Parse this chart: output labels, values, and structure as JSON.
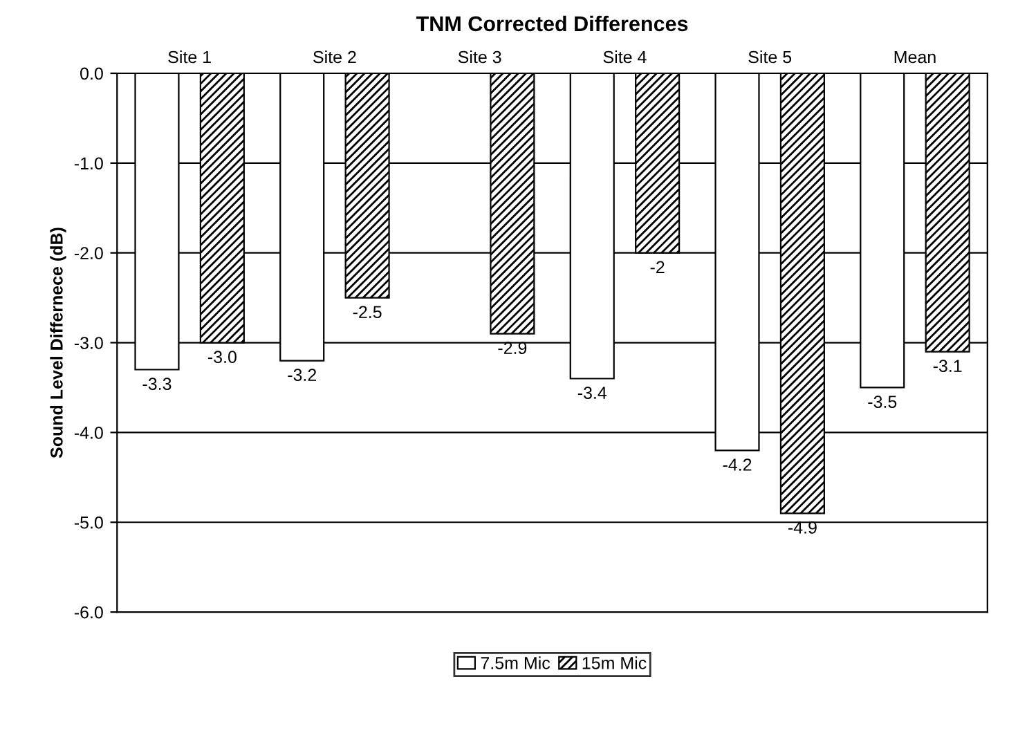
{
  "chart_data": {
    "type": "bar",
    "title": "TNM Corrected Differences",
    "ylabel": "Sound Level Differnece (dB)",
    "categories": [
      "Site 1",
      "Site 2",
      "Site 3",
      "Site 4",
      "Site 5",
      "Mean"
    ],
    "series": [
      {
        "name": "7.5m Mic",
        "color": "#ffffff",
        "values": [
          -3.3,
          -3.2,
          null,
          -3.4,
          -4.2,
          -3.5
        ],
        "value_labels": [
          "-3.3",
          "-3.2",
          null,
          "-3.4",
          "-4.2",
          "-3.5"
        ]
      },
      {
        "name": "15m Mic",
        "color": "#000000",
        "values": [
          -3.0,
          -2.5,
          -2.9,
          -2.0,
          -4.9,
          -3.1
        ],
        "value_labels": [
          "-3.0",
          "-2.5",
          "-2.9",
          "-2",
          "-4.9",
          "-3.1"
        ]
      }
    ],
    "ylim": [
      -6.0,
      0.0
    ],
    "yticks": [
      {
        "value": 0,
        "label": "0.0"
      },
      {
        "value": -1,
        "label": "-1.0"
      },
      {
        "value": -2,
        "label": "-2.0"
      },
      {
        "value": -3,
        "label": "-3.0"
      },
      {
        "value": -4,
        "label": "-4.0"
      },
      {
        "value": -5,
        "label": "-5.0"
      },
      {
        "value": -6,
        "label": "-6.0"
      }
    ],
    "grid": "y",
    "legend": "bottom"
  }
}
